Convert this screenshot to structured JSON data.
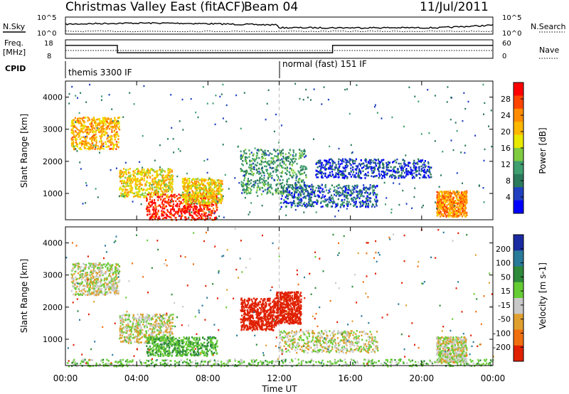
{
  "header": {
    "title": "Christmas Valley East (fitACF)",
    "beam": "Beam 04",
    "date": "11/Jul/2011"
  },
  "noise_panel": {
    "left_label": "N.Sky",
    "right_label": "N.Search",
    "left_ticks": [
      "10^5",
      "10^0"
    ],
    "right_ticks": [
      "10^5",
      "10^0"
    ]
  },
  "freq_panel": {
    "left_label_1": "Freq.",
    "left_label_2": "[MHz]",
    "right_label": "Nave",
    "left_ticks": [
      "18",
      "8"
    ],
    "right_ticks": [
      "60",
      "0"
    ]
  },
  "cpid": {
    "label": "CPID",
    "segments": [
      {
        "text": "themis 3300 IF"
      },
      {
        "text": "normal (fast) 151 IF"
      }
    ]
  },
  "power_panel": {
    "ylabel": "Slant Range [km]",
    "yticks": [
      "4000",
      "3000",
      "2000",
      "1000"
    ],
    "colorbar_label": "Power [dB]",
    "colorbar_ticks": [
      "28",
      "24",
      "20",
      "16",
      "12",
      "8",
      "4"
    ],
    "colors": [
      "#ff0000",
      "#ff4400",
      "#ff8c00",
      "#ffb800",
      "#e8e800",
      "#80cc40",
      "#3f9f6f",
      "#2b7a5c",
      "#2040c0",
      "#0000ff"
    ]
  },
  "velocity_panel": {
    "ylabel": "Slant Range [km]",
    "yticks": [
      "4000",
      "3000",
      "2000",
      "1000"
    ],
    "colorbar_label": "Velocity [m s-1]",
    "colorbar_ticks": [
      "200",
      "100",
      "50",
      "15",
      "-15",
      "-50",
      "-100",
      "-200"
    ],
    "colors": [
      "#1a2aa0",
      "#2a7a9a",
      "#2e8a3a",
      "#66cc33",
      "#c8c8c8",
      "#e0a030",
      "#f07010",
      "#e02000"
    ]
  },
  "xaxis": {
    "label": "Time UT",
    "ticks": [
      "00:00",
      "04:00",
      "08:00",
      "12:00",
      "16:00",
      "20:00",
      "00:00"
    ]
  },
  "chart_data": {
    "type": "heatmap",
    "title": "Christmas Valley East (fitACF)",
    "xlabel": "Time UT",
    "ylabel": "Slant Range [km]",
    "xlim": [
      "00:00",
      "24:00"
    ],
    "ylim": [
      180,
      4500
    ],
    "cpid_change_time": "12:00",
    "frequency_mhz": [
      {
        "from": "00:00",
        "to": "02:55",
        "value": 15
      },
      {
        "from": "02:55",
        "to": "15:00",
        "value": 11
      },
      {
        "from": "15:00",
        "to": "24:00",
        "value": 15
      }
    ],
    "power_clusters": [
      {
        "t": [
          0.3,
          3.0
        ],
        "r": [
          2400,
          3400
        ],
        "power": 20
      },
      {
        "t": [
          3.0,
          6.0
        ],
        "r": [
          900,
          1800
        ],
        "power": 18
      },
      {
        "t": [
          4.5,
          8.5
        ],
        "r": [
          200,
          1000
        ],
        "power": 28
      },
      {
        "t": [
          6.5,
          8.8
        ],
        "r": [
          700,
          1500
        ],
        "power": 18
      },
      {
        "t": [
          9.8,
          13.5
        ],
        "r": [
          1000,
          2400
        ],
        "power": 10
      },
      {
        "t": [
          12.0,
          17.5
        ],
        "r": [
          600,
          1300
        ],
        "power": 6
      },
      {
        "t": [
          14.0,
          20.5
        ],
        "r": [
          1500,
          2100
        ],
        "power": 4
      },
      {
        "t": [
          20.8,
          22.5
        ],
        "r": [
          300,
          1100
        ],
        "power": 22
      }
    ],
    "velocity_clusters": [
      {
        "t": [
          0.3,
          3.0
        ],
        "r": [
          2400,
          3400
        ],
        "velocity": 0
      },
      {
        "t": [
          3.0,
          6.0
        ],
        "r": [
          900,
          1800
        ],
        "velocity": 0
      },
      {
        "t": [
          4.5,
          8.5
        ],
        "r": [
          500,
          1100
        ],
        "velocity": 30
      },
      {
        "t": [
          9.8,
          11.8
        ],
        "r": [
          1300,
          2300
        ],
        "velocity": -200
      },
      {
        "t": [
          11.8,
          13.2
        ],
        "r": [
          1500,
          2500
        ],
        "velocity": -120
      },
      {
        "t": [
          12.0,
          17.5
        ],
        "r": [
          600,
          1300
        ],
        "velocity": 0
      },
      {
        "t": [
          0.0,
          24.0
        ],
        "r": [
          180,
          400
        ],
        "velocity": 20
      },
      {
        "t": [
          20.8,
          22.5
        ],
        "r": [
          300,
          1100
        ],
        "velocity": 0
      }
    ]
  }
}
